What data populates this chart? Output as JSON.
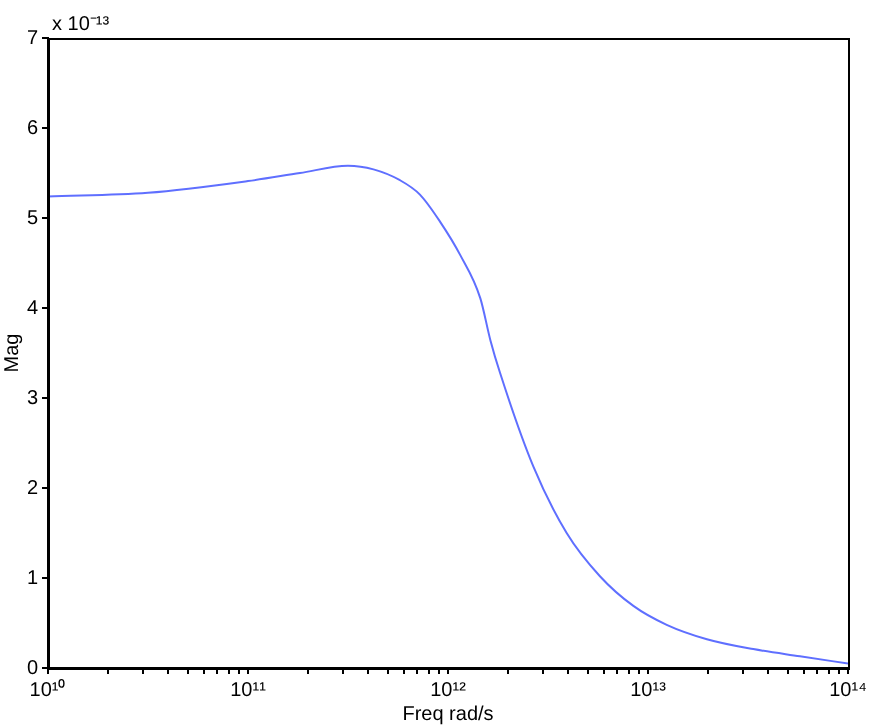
{
  "chart_data": {
    "type": "line",
    "xlabel": "Freq rad/s",
    "ylabel": "Mag",
    "annotations": [
      "x 10⁻¹³"
    ],
    "log": "x",
    "grid": false,
    "legend": false,
    "marker": "none",
    "line_style": "solid",
    "xlim": [
      10000000000.0,
      100000000000000.0
    ],
    "ylim": [
      0,
      7
    ],
    "xticks": [
      {
        "value": 10000000000.0,
        "label": "10¹⁰"
      },
      {
        "value": 20000000000.0,
        "label": null
      },
      {
        "value": 30000000000.0,
        "label": null
      },
      {
        "value": 40000000000.0,
        "label": null
      },
      {
        "value": 50000000000.0,
        "label": null
      },
      {
        "value": 60000000000.0,
        "label": null
      },
      {
        "value": 70000000000.0,
        "label": null
      },
      {
        "value": 80000000000.0,
        "label": null
      },
      {
        "value": 90000000000.0,
        "label": null
      },
      {
        "value": 100000000000.0,
        "label": "10¹¹"
      },
      {
        "value": 200000000000.0,
        "label": null
      },
      {
        "value": 300000000000.0,
        "label": null
      },
      {
        "value": 400000000000.0,
        "label": null
      },
      {
        "value": 500000000000.0,
        "label": null
      },
      {
        "value": 600000000000.0,
        "label": null
      },
      {
        "value": 700000000000.0,
        "label": null
      },
      {
        "value": 800000000000.0,
        "label": null
      },
      {
        "value": 900000000000.0,
        "label": null
      },
      {
        "value": 1000000000000.0,
        "label": "10¹²"
      },
      {
        "value": 2000000000000.0,
        "label": null
      },
      {
        "value": 3000000000000.0,
        "label": null
      },
      {
        "value": 4000000000000.0,
        "label": null
      },
      {
        "value": 5000000000000.0,
        "label": null
      },
      {
        "value": 6000000000000.0,
        "label": null
      },
      {
        "value": 7000000000000.0,
        "label": null
      },
      {
        "value": 8000000000000.0,
        "label": null
      },
      {
        "value": 9000000000000.0,
        "label": null
      },
      {
        "value": 10000000000000.0,
        "label": "10¹³"
      },
      {
        "value": 20000000000000.0,
        "label": null
      },
      {
        "value": 30000000000000.0,
        "label": null
      },
      {
        "value": 40000000000000.0,
        "label": null
      },
      {
        "value": 50000000000000.0,
        "label": null
      },
      {
        "value": 60000000000000.0,
        "label": null
      },
      {
        "value": 70000000000000.0,
        "label": null
      },
      {
        "value": 80000000000000.0,
        "label": null
      },
      {
        "value": 90000000000000.0,
        "label": null
      },
      {
        "value": 100000000000000.0,
        "label": "10¹⁴"
      }
    ],
    "yticks": [
      0,
      1,
      2,
      3,
      4,
      5,
      6,
      7
    ],
    "series": [
      {
        "color": "#5f6fff",
        "x": [
          10000000000.0,
          31600000000.0,
          100000000000.0,
          182000000000.0,
          316000000000.0,
          424000000000.0,
          575000000000.0,
          724000000000.0,
          912000000000.0,
          1150000000000.0,
          1450000000000.0,
          1630000000000.0,
          1820000000000.0,
          2670000000000.0,
          3920000000000.0,
          5750000000000.0,
          8450000000000.0,
          12400000000000.0,
          19700000000000.0,
          33600000000000.0,
          57500000000000.0,
          100000000000000.0
        ],
        "values": [
          5.24,
          5.28,
          5.41,
          5.5,
          5.58,
          5.54,
          5.42,
          5.26,
          4.96,
          4.59,
          4.11,
          3.64,
          3.28,
          2.24,
          1.5,
          1.02,
          0.69,
          0.48,
          0.32,
          0.21,
          0.13,
          0.05
        ]
      }
    ]
  }
}
